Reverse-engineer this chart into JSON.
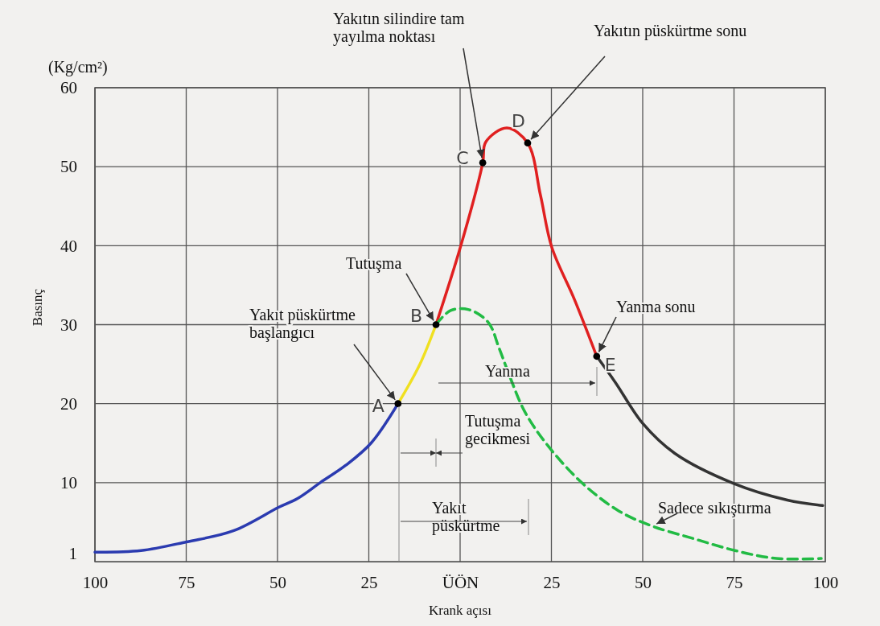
{
  "chart_data": {
    "type": "line",
    "xlabel": "Krank açısı",
    "ylabel": "Basınç",
    "xlim": [
      -100,
      100
    ],
    "ylim": [
      0,
      60
    ],
    "xticks": [
      {
        "value": -100,
        "label": "100"
      },
      {
        "value": -75,
        "label": "75"
      },
      {
        "value": -50,
        "label": "50"
      },
      {
        "value": -25,
        "label": "25"
      },
      {
        "value": 0,
        "label": "ÜÖN"
      },
      25,
      50,
      75,
      100
    ],
    "yticks": [
      1,
      10,
      20,
      30,
      40,
      50,
      60
    ],
    "grid": true,
    "series": [
      {
        "type": "line",
        "color": "#2b3bb0",
        "x": [
          -100,
          -87.4,
          -74.9,
          -62.1,
          -49.6,
          -44.5,
          -38.3,
          -31.3,
          -24.4,
          -17
        ],
        "values": [
          1.2,
          1.4,
          2.5,
          3.9,
          6.9,
          8,
          10,
          12.2,
          15,
          20
        ]
      },
      {
        "type": "line",
        "color": "#f0e020",
        "x": [
          -17,
          -11.1,
          -6.6
        ],
        "values": [
          20,
          24.9,
          30
        ]
      },
      {
        "type": "line",
        "color": "#e02020",
        "x": [
          -6.6,
          0.2,
          6.2,
          7,
          12.8,
          18.5,
          22,
          25.1,
          31.3,
          37.4
        ],
        "values": [
          30,
          40,
          50.5,
          53.1,
          54.9,
          53,
          46.4,
          39.8,
          33.2,
          26
        ]
      },
      {
        "type": "line",
        "color": "#333333",
        "x": [
          37.4,
          42.5,
          50,
          58.8,
          74.9,
          89.6,
          99.3
        ],
        "values": [
          26,
          22.7,
          17.5,
          13.7,
          9.9,
          7.8,
          7.1
        ]
      },
      {
        "type": "line",
        "color": "#22bb44",
        "line_style": "dashed",
        "x": [
          -6.6,
          -2.6,
          2.4,
          7.7,
          10.7,
          13.8,
          17.8,
          24,
          33.3,
          43.5,
          52.6,
          64,
          75.3,
          86.6,
          98.9
        ],
        "values": [
          30,
          31.8,
          31.9,
          30.3,
          27,
          23.2,
          18.9,
          14.7,
          10,
          6.4,
          4.5,
          2.9,
          1.4,
          0.4,
          0.4
        ]
      },
      {
        "type": "scatter",
        "color": "#000000",
        "marker": "circle",
        "x": [
          -17,
          -6.6,
          6.2,
          18.5,
          37.4
        ],
        "values": [
          20,
          30,
          50.5,
          53,
          26
        ],
        "value_labels": [
          "A",
          "B",
          "C",
          "D",
          "E"
        ]
      }
    ],
    "annotations": [
      {
        "text": "Yakıt püskürtme başlangıcı",
        "x": -17,
        "y": 20
      },
      {
        "text": "Tutuşma",
        "x": -6.6,
        "y": 30
      },
      {
        "text": "Yakıtın silindire tam yayılma noktası",
        "x": 6.2,
        "y": 50.5
      },
      {
        "text": "Yakıtın püskürtme sonu",
        "x": 18.5,
        "y": 53
      },
      {
        "text": "Yanma sonu",
        "x": 37.4,
        "y": 26
      },
      {
        "text": "Sadece sıkıştırma",
        "x": 52.6,
        "y": 4.5
      },
      "Yanma",
      "Tutuşma gecikmesi",
      "Yakıt püskürtme",
      "(Kg/cm²)"
    ]
  }
}
